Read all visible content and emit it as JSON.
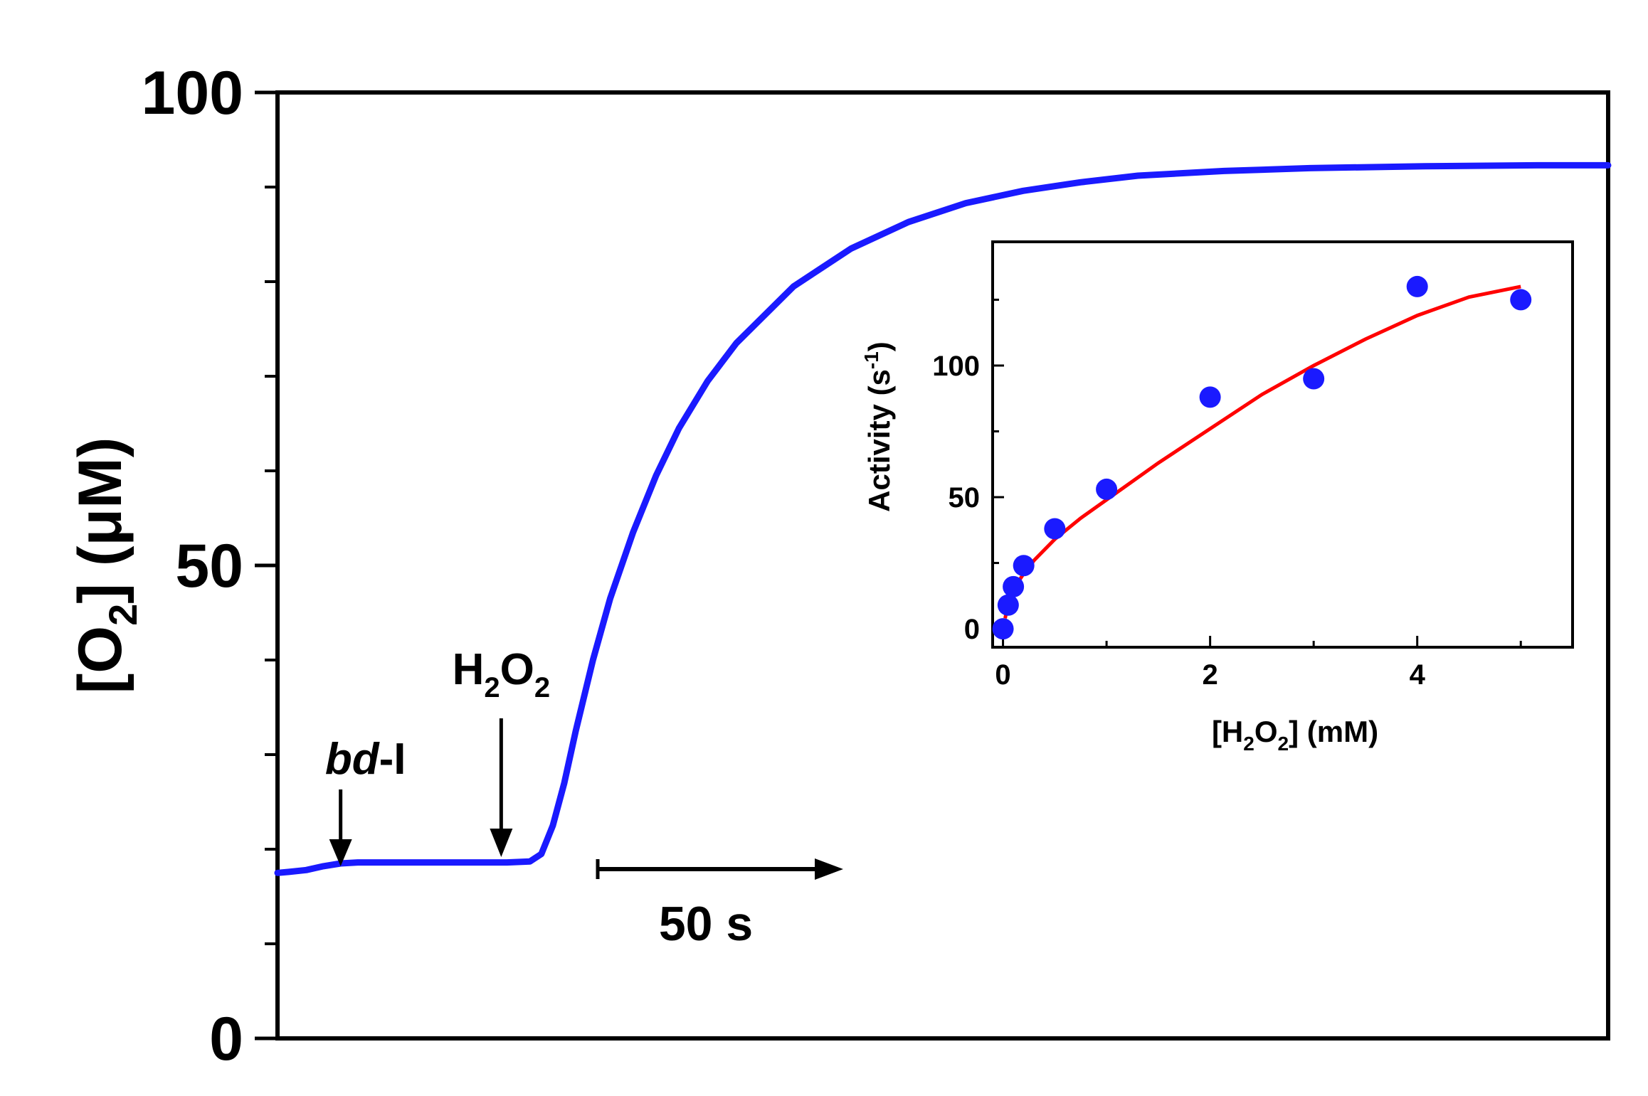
{
  "chart_data": [
    {
      "type": "line",
      "ylabel_main": "[O",
      "ylabel_sub": "2",
      "ylabel_rest": "] (μM)",
      "ylim": [
        0,
        100
      ],
      "y_ticks_major": [
        0,
        50,
        100
      ],
      "y_ticks_minor": [
        10,
        20,
        30,
        40,
        60,
        70,
        80,
        90
      ],
      "series": [
        {
          "color": "#1a1aff",
          "points": [
            [
              0,
              17.5
            ],
            [
              2,
              17.6
            ],
            [
              5,
              17.8
            ],
            [
              8,
              18.2
            ],
            [
              11,
              18.5
            ],
            [
              14,
              18.6
            ],
            [
              20,
              18.6
            ],
            [
              30,
              18.6
            ],
            [
              40,
              18.6
            ],
            [
              44,
              18.7
            ],
            [
              46,
              19.5
            ],
            [
              48,
              22.5
            ],
            [
              50,
              27
            ],
            [
              52,
              32.5
            ],
            [
              55,
              40
            ],
            [
              58,
              46.5
            ],
            [
              62,
              53.5
            ],
            [
              66,
              59.5
            ],
            [
              70,
              64.5
            ],
            [
              75,
              69.5
            ],
            [
              80,
              73.5
            ],
            [
              90,
              79.5
            ],
            [
              100,
              83.5
            ],
            [
              110,
              86.3
            ],
            [
              120,
              88.3
            ],
            [
              130,
              89.6
            ],
            [
              140,
              90.5
            ],
            [
              150,
              91.2
            ],
            [
              165,
              91.7
            ],
            [
              180,
              92.0
            ],
            [
              200,
              92.2
            ],
            [
              220,
              92.3
            ],
            [
              232,
              92.3
            ]
          ]
        }
      ],
      "annotations": [
        {
          "label_italic": "bd",
          "label_rest": "-I",
          "x": 11
        },
        {
          "label_main": "H",
          "sub1": "2",
          "label_mid": "O",
          "sub2": "2",
          "x": 39
        }
      ],
      "scale_bar": {
        "label": "50 s",
        "x_start": 55,
        "x_end": 105,
        "y": 18
      }
    },
    {
      "type": "scatter",
      "xlabel_parts": [
        "[H",
        "2",
        "O",
        "2",
        "] (mM)"
      ],
      "ylabel_parts": [
        "Activity (s",
        "-1",
        ")"
      ],
      "xlim": [
        -0.1,
        5.5
      ],
      "ylim": [
        -7,
        147
      ],
      "x_ticks": [
        0,
        2,
        4
      ],
      "y_ticks": [
        0,
        50,
        100
      ],
      "points": [
        [
          0,
          0
        ],
        [
          0.05,
          9
        ],
        [
          0.1,
          16
        ],
        [
          0.2,
          24
        ],
        [
          0.5,
          38
        ],
        [
          1,
          53
        ],
        [
          2,
          88
        ],
        [
          3,
          95
        ],
        [
          4,
          130
        ],
        [
          5,
          125
        ]
      ],
      "fit": {
        "color": "#ff0000",
        "points": [
          [
            0.02,
            4
          ],
          [
            0.05,
            9
          ],
          [
            0.1,
            13.5
          ],
          [
            0.15,
            18
          ],
          [
            0.2,
            21
          ],
          [
            0.3,
            26
          ],
          [
            0.5,
            34
          ],
          [
            0.75,
            42
          ],
          [
            1.0,
            49
          ],
          [
            1.5,
            63
          ],
          [
            2.0,
            76
          ],
          [
            2.5,
            89
          ],
          [
            3.0,
            100
          ],
          [
            3.5,
            110
          ],
          [
            4.0,
            119
          ],
          [
            4.5,
            126
          ],
          [
            5.0,
            130
          ]
        ]
      },
      "marker_color": "#1a1aff"
    }
  ]
}
